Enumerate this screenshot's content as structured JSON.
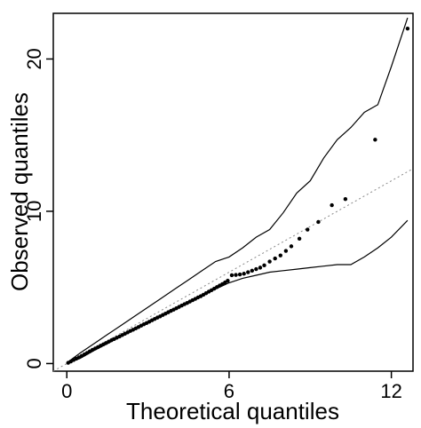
{
  "chart_data": {
    "type": "scatter",
    "title": "",
    "xlabel": "Theoretical quantiles",
    "ylabel": "Observed quantiles",
    "xlim": [
      -0.5,
      12.8
    ],
    "ylim": [
      -0.5,
      23.0
    ],
    "xticks": [
      0,
      6,
      12
    ],
    "yticks": [
      0,
      10,
      20
    ],
    "grid": false,
    "legend": "none",
    "reference_line": {
      "x": [
        -0.5,
        12.8
      ],
      "y": [
        -0.5,
        12.8
      ],
      "style": "dotted",
      "color": "#888888"
    },
    "points": {
      "x": [
        0.05,
        0.15,
        0.25,
        0.35,
        0.45,
        0.55,
        0.65,
        0.75,
        0.85,
        0.95,
        1.05,
        1.15,
        1.25,
        1.35,
        1.45,
        1.55,
        1.65,
        1.75,
        1.85,
        1.95,
        2.05,
        2.15,
        2.25,
        2.35,
        2.45,
        2.55,
        2.65,
        2.75,
        2.85,
        2.95,
        3.05,
        3.15,
        3.25,
        3.35,
        3.45,
        3.55,
        3.65,
        3.75,
        3.85,
        3.95,
        4.05,
        4.15,
        4.25,
        4.35,
        4.45,
        4.55,
        4.65,
        4.75,
        4.85,
        4.95,
        5.05,
        5.15,
        5.25,
        5.35,
        5.45,
        5.55,
        5.65,
        5.75,
        5.85,
        5.95,
        6.1,
        6.25,
        6.4,
        6.55,
        6.7,
        6.85,
        7.0,
        7.15,
        7.3,
        7.5,
        7.7,
        7.9,
        8.1,
        8.3,
        8.6,
        8.9,
        9.3,
        9.8,
        10.3,
        11.4,
        12.6
      ],
      "y": [
        0.05,
        0.14,
        0.23,
        0.32,
        0.41,
        0.5,
        0.6,
        0.7,
        0.8,
        0.9,
        0.99,
        1.08,
        1.17,
        1.26,
        1.35,
        1.44,
        1.53,
        1.61,
        1.7,
        1.78,
        1.87,
        1.96,
        2.05,
        2.14,
        2.22,
        2.31,
        2.4,
        2.49,
        2.58,
        2.66,
        2.75,
        2.84,
        2.93,
        3.02,
        3.1,
        3.19,
        3.28,
        3.37,
        3.46,
        3.54,
        3.63,
        3.72,
        3.81,
        3.9,
        3.98,
        4.07,
        4.16,
        4.25,
        4.34,
        4.42,
        4.52,
        4.62,
        4.72,
        4.82,
        4.92,
        5.02,
        5.12,
        5.22,
        5.33,
        5.44,
        5.8,
        5.82,
        5.85,
        5.9,
        6.0,
        6.1,
        6.2,
        6.3,
        6.45,
        6.7,
        6.9,
        7.1,
        7.4,
        7.7,
        8.2,
        8.8,
        9.3,
        10.4,
        10.8,
        14.7,
        22.0
      ]
    },
    "upper_envelope": {
      "x": [
        0.0,
        0.5,
        1.0,
        1.5,
        2.0,
        2.5,
        3.0,
        3.5,
        4.0,
        4.5,
        5.0,
        5.5,
        6.0,
        6.5,
        7.0,
        7.5,
        8.0,
        8.5,
        9.0,
        9.5,
        10.0,
        10.5,
        11.0,
        11.5,
        12.0,
        12.6
      ],
      "y": [
        0.05,
        0.7,
        1.3,
        1.9,
        2.5,
        3.1,
        3.7,
        4.3,
        4.9,
        5.5,
        6.1,
        6.7,
        7.0,
        7.6,
        8.3,
        8.8,
        9.9,
        11.2,
        12.0,
        13.5,
        14.7,
        15.5,
        16.5,
        17.0,
        19.5,
        22.7
      ]
    },
    "lower_envelope": {
      "x": [
        0.0,
        0.5,
        1.0,
        1.5,
        2.0,
        2.5,
        3.0,
        3.5,
        4.0,
        4.5,
        5.0,
        5.5,
        6.0,
        6.5,
        7.0,
        7.5,
        8.0,
        8.5,
        9.0,
        9.5,
        10.0,
        10.5,
        11.0,
        11.5,
        12.0,
        12.6
      ],
      "y": [
        0.0,
        0.35,
        0.85,
        1.3,
        1.8,
        2.25,
        2.7,
        3.15,
        3.6,
        4.05,
        4.5,
        4.9,
        5.3,
        5.6,
        5.8,
        6.0,
        6.1,
        6.2,
        6.3,
        6.4,
        6.5,
        6.5,
        7.0,
        7.6,
        8.3,
        9.4
      ]
    }
  }
}
